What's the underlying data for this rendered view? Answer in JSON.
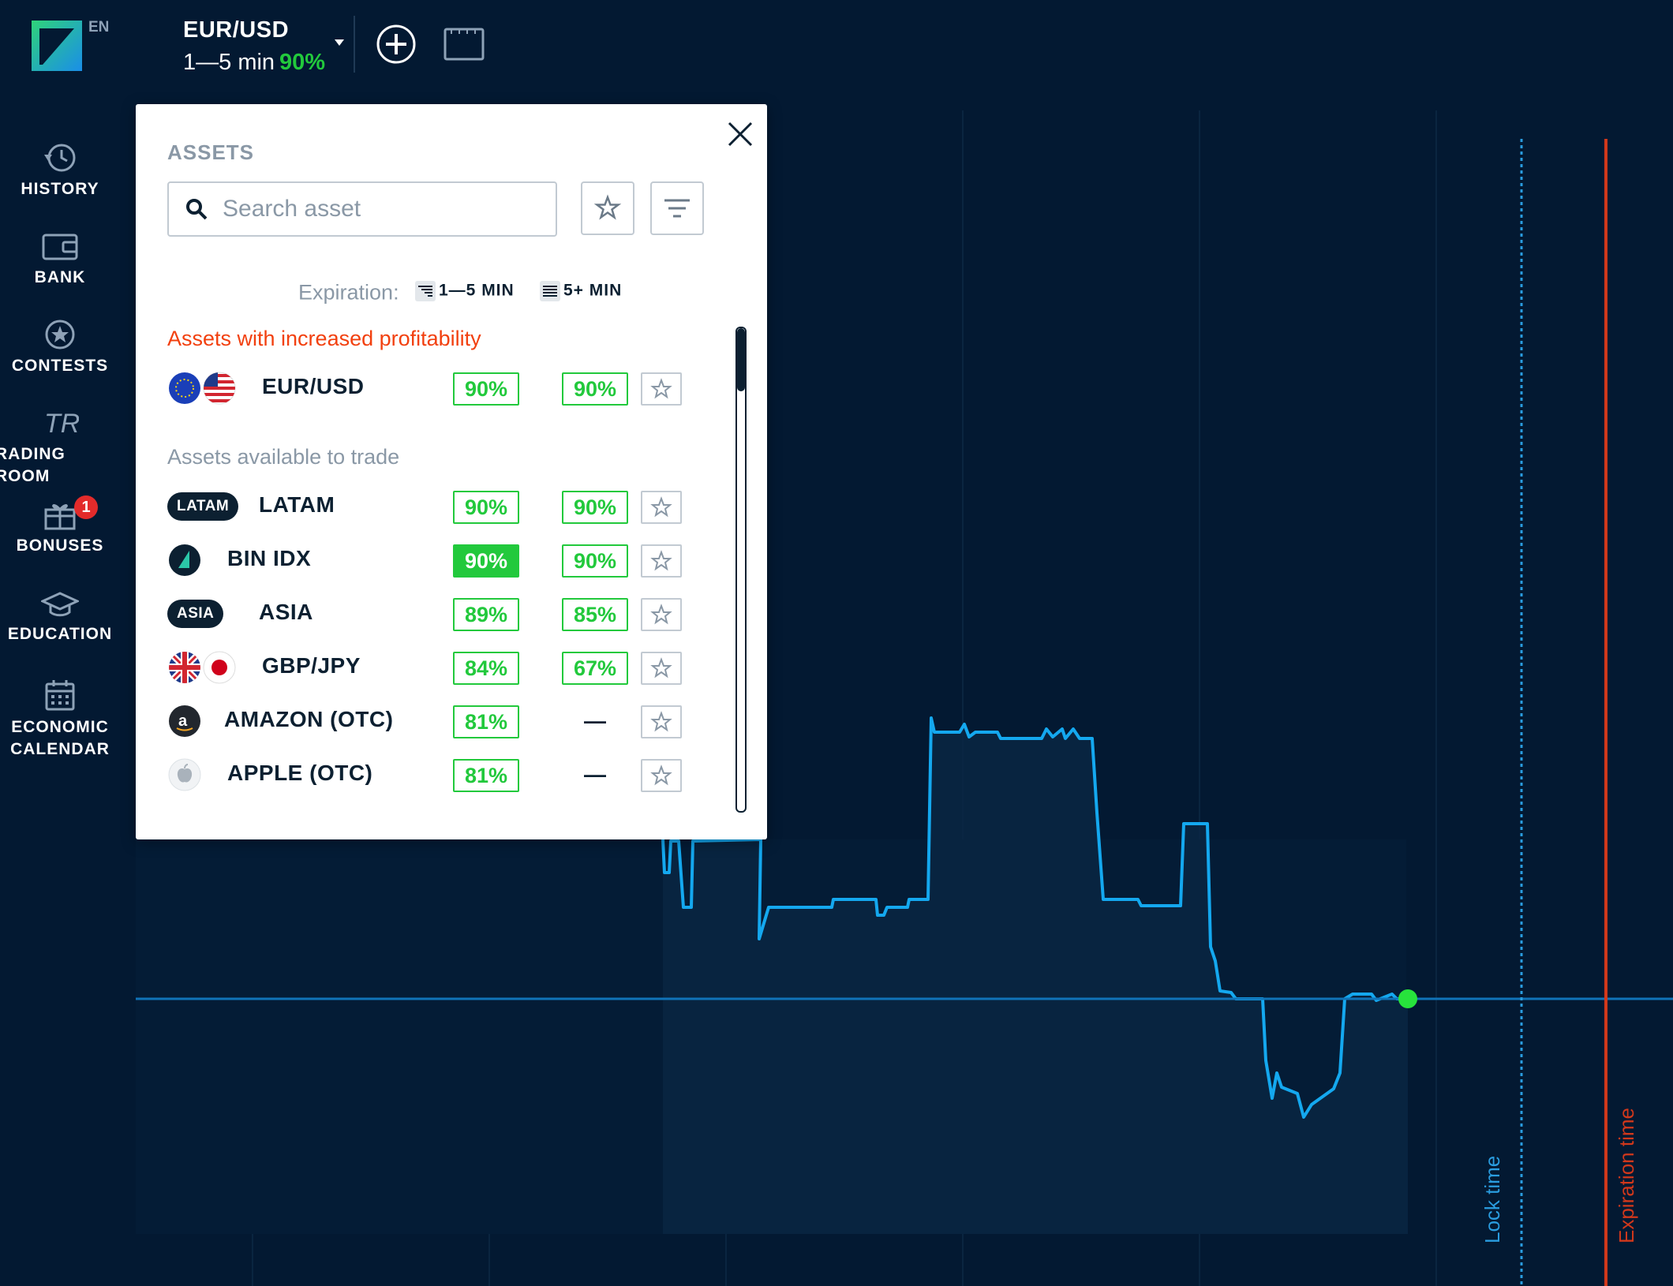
{
  "header": {
    "language": "EN",
    "asset_name": "EUR/USD",
    "asset_timeframe": "1—5 min",
    "asset_payout": "90%"
  },
  "sidebar": {
    "items": [
      {
        "label": "HISTORY",
        "icon": "history-icon"
      },
      {
        "label": "BANK",
        "icon": "wallet-icon"
      },
      {
        "label": "CONTESTS",
        "icon": "star-circle-icon"
      },
      {
        "label": "RADING ROOM",
        "icon": "trading-room-icon"
      },
      {
        "label": "BONUSES",
        "icon": "gift-icon",
        "badge": "1"
      },
      {
        "label": "EDUCATION",
        "icon": "graduation-cap-icon"
      },
      {
        "label": "ECONOMIC\nCALENDAR",
        "icon": "calendar-icon"
      }
    ]
  },
  "modal": {
    "title": "ASSETS",
    "search_placeholder": "Search asset",
    "expiration_label": "Expiration:",
    "expiration_options": [
      "1—5 MIN",
      "5+ MIN"
    ],
    "section_hot": "Assets with increased profitability",
    "section_available": "Assets available to trade",
    "hot_assets": [
      {
        "name": "EUR/USD",
        "payout_short": "90%",
        "payout_long": "90%",
        "icon": "eur-usd-flags-icon",
        "highlight": false
      }
    ],
    "assets": [
      {
        "name": "LATAM",
        "tag": "LATAM",
        "payout_short": "90%",
        "payout_long": "90%",
        "icon": "latam-pill",
        "highlight": false
      },
      {
        "name": "BIN IDX",
        "payout_short": "90%",
        "payout_long": "90%",
        "icon": "binidx-logo-icon",
        "highlight": true
      },
      {
        "name": "ASIA",
        "tag": "ASIA",
        "payout_short": "89%",
        "payout_long": "85%",
        "icon": "asia-pill",
        "highlight": false
      },
      {
        "name": "GBP/JPY",
        "payout_short": "84%",
        "payout_long": "67%",
        "icon": "gbp-jpy-flags-icon",
        "highlight": false
      },
      {
        "name": "AMAZON (OTC)",
        "payout_short": "81%",
        "payout_long": "—",
        "icon": "amazon-icon",
        "highlight": false
      },
      {
        "name": "APPLE (OTC)",
        "payout_short": "81%",
        "payout_long": "—",
        "icon": "apple-icon",
        "highlight": false
      }
    ]
  },
  "chart": {
    "lock_label": "Lock time",
    "expiration_label": "Expiration time",
    "colors": {
      "line": "#14a8ef",
      "current": "#27e33c",
      "lock": "#2a9de0",
      "expiration": "#d2381b",
      "background": "#031932"
    }
  }
}
